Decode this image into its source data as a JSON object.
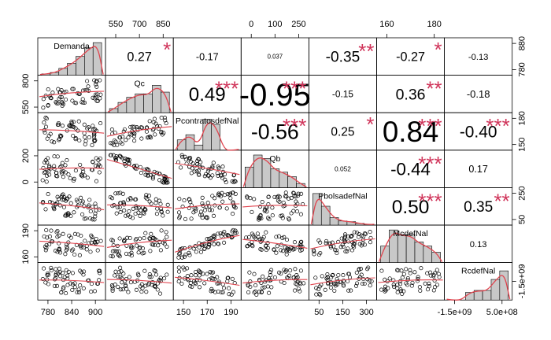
{
  "chart_data": {
    "type": "scatter-matrix",
    "title": "",
    "variables": [
      "Demanda",
      "Qc",
      "PcontratosdefNal",
      "Qb",
      "PbolsadefNal",
      "McdefNal",
      "RcdefNal"
    ],
    "axes": {
      "bottom": [
        {
          "var": 0,
          "ticks": [
            "780",
            "840",
            "900"
          ]
        },
        {
          "var": 2,
          "ticks": [
            "150",
            "170",
            "190"
          ]
        },
        {
          "var": 4,
          "ticks": [
            "50",
            "150",
            "300"
          ]
        },
        {
          "var": 6,
          "ticks": [
            "-1.5e+09",
            "5.0e+08"
          ]
        }
      ],
      "top": [
        {
          "var": 1,
          "ticks": [
            "550",
            "700",
            "850"
          ]
        },
        {
          "var": 3,
          "ticks": [
            "0",
            "100",
            "250"
          ]
        },
        {
          "var": 5,
          "ticks": [
            "160",
            "180"
          ]
        }
      ],
      "left": [
        {
          "var": 1,
          "ticks": [
            "550",
            "800"
          ]
        },
        {
          "var": 3,
          "ticks": [
            "0",
            "200"
          ]
        },
        {
          "var": 5,
          "ticks": [
            "160",
            "190"
          ]
        }
      ],
      "right": [
        {
          "var": 0,
          "ticks": [
            "780",
            "880"
          ]
        },
        {
          "var": 2,
          "ticks": [
            "150",
            "180"
          ]
        },
        {
          "var": 4,
          "ticks": [
            "50",
            "250"
          ]
        },
        {
          "var": 6,
          "ticks": [
            "-1.5e+09"
          ]
        }
      ]
    },
    "correlations": [
      {
        "row": 0,
        "col": 1,
        "value": "0.27",
        "stars": "*"
      },
      {
        "row": 0,
        "col": 2,
        "value": "-0.17",
        "stars": ""
      },
      {
        "row": 0,
        "col": 3,
        "value": "0.037",
        "stars": ""
      },
      {
        "row": 0,
        "col": 4,
        "value": "-0.35",
        "stars": "**"
      },
      {
        "row": 0,
        "col": 5,
        "value": "-0.27",
        "stars": "*"
      },
      {
        "row": 0,
        "col": 6,
        "value": "-0.13",
        "stars": ""
      },
      {
        "row": 1,
        "col": 2,
        "value": "0.49",
        "stars": "***"
      },
      {
        "row": 1,
        "col": 3,
        "value": "-0.95",
        "stars": "***"
      },
      {
        "row": 1,
        "col": 4,
        "value": "-0.15",
        "stars": ""
      },
      {
        "row": 1,
        "col": 5,
        "value": "0.36",
        "stars": "**"
      },
      {
        "row": 1,
        "col": 6,
        "value": "-0.18",
        "stars": ""
      },
      {
        "row": 2,
        "col": 3,
        "value": "-0.56",
        "stars": "***"
      },
      {
        "row": 2,
        "col": 4,
        "value": "0.25",
        "stars": "*"
      },
      {
        "row": 2,
        "col": 5,
        "value": "0.84",
        "stars": "***"
      },
      {
        "row": 2,
        "col": 6,
        "value": "-0.40",
        "stars": "***"
      },
      {
        "row": 3,
        "col": 4,
        "value": "0.052",
        "stars": ""
      },
      {
        "row": 3,
        "col": 5,
        "value": "-0.44",
        "stars": "***"
      },
      {
        "row": 3,
        "col": 6,
        "value": "0.17",
        "stars": ""
      },
      {
        "row": 4,
        "col": 5,
        "value": "0.50",
        "stars": "***"
      },
      {
        "row": 4,
        "col": 6,
        "value": "0.35",
        "stars": "**"
      },
      {
        "row": 5,
        "col": 6,
        "value": "0.13",
        "stars": ""
      }
    ],
    "histograms": [
      [
        0.04,
        0.08,
        0.2,
        0.35,
        0.55,
        0.8,
        0.95
      ],
      [
        0.12,
        0.3,
        0.45,
        0.55,
        0.55,
        0.8,
        0.6
      ],
      [
        0.3,
        0.45,
        0.15,
        0.9,
        0.75,
        0.0,
        0.0
      ],
      [
        0.6,
        0.95,
        0.85,
        0.55,
        0.45,
        0.32,
        0.12
      ],
      [
        0.92,
        0.55,
        0.22,
        0.12,
        0.1,
        0.05,
        0.02
      ],
      [
        0.48,
        0.95,
        0.82,
        0.82,
        0.6,
        0.48,
        0.3
      ],
      [
        0.0,
        0.0,
        0.22,
        0.28,
        0.28,
        0.6,
        0.85
      ]
    ],
    "series": [
      {
        "name": "correlation-stars",
        "color": "#d0345a"
      },
      {
        "name": "loess-smooth",
        "color": "#e0444e"
      },
      {
        "name": "histogram-bars",
        "color": "#c8c8c8"
      }
    ]
  }
}
